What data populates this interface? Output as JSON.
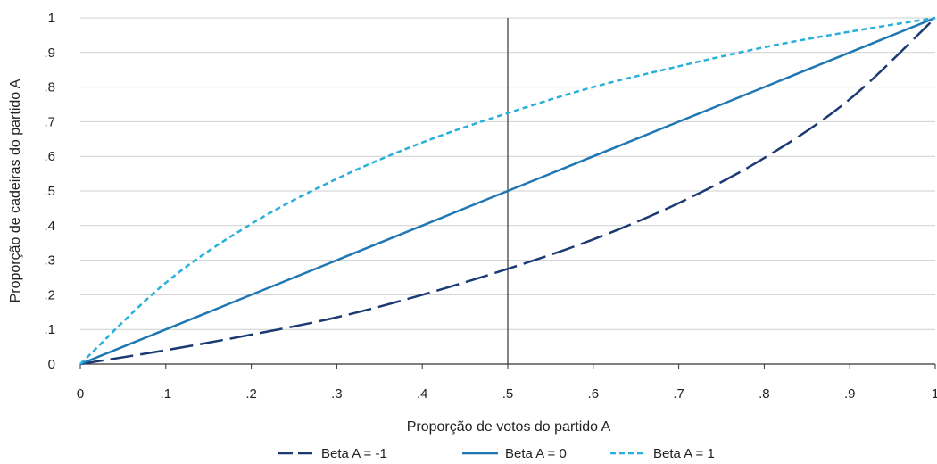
{
  "chart_data": {
    "type": "line",
    "xlabel": "Proporção de votos do partido A",
    "ylabel": "Proporção de cadeiras do partido A",
    "xlim": [
      0,
      1
    ],
    "ylim": [
      0,
      1
    ],
    "x_ticks": [
      0,
      0.1,
      0.2,
      0.3,
      0.4,
      0.5,
      0.6,
      0.7,
      0.8,
      0.9,
      1
    ],
    "x_tick_labels": [
      "0",
      ".1",
      ".2",
      ".3",
      ".4",
      ".5",
      ".6",
      ".7",
      ".8",
      ".9",
      "1"
    ],
    "y_ticks": [
      0,
      0.1,
      0.2,
      0.3,
      0.4,
      0.5,
      0.6,
      0.7,
      0.8,
      0.9,
      1
    ],
    "y_tick_labels": [
      "0",
      ".1",
      ".2",
      ".3",
      ".4",
      ".5",
      ".6",
      ".7",
      ".8",
      ".9",
      "1"
    ],
    "grid": "horizontal",
    "reference_line_x": 0.5,
    "legend_position": "bottom",
    "x": [
      0,
      0.1,
      0.2,
      0.3,
      0.4,
      0.5,
      0.6,
      0.7,
      0.8,
      0.9,
      1
    ],
    "series": [
      {
        "name": "Beta  A = -1",
        "style": "long-dash",
        "color": "#1b3a73",
        "values": [
          0,
          0.04,
          0.085,
          0.135,
          0.2,
          0.275,
          0.36,
          0.465,
          0.595,
          0.765,
          1
        ]
      },
      {
        "name": "Beta  A = 0",
        "style": "solid",
        "color": "#1f77b4",
        "values": [
          0,
          0.1,
          0.2,
          0.3,
          0.4,
          0.5,
          0.6,
          0.7,
          0.8,
          0.9,
          1
        ]
      },
      {
        "name": "Beta  A = 1",
        "style": "short-dash",
        "color": "#29afd9",
        "values": [
          0,
          0.235,
          0.405,
          0.535,
          0.64,
          0.725,
          0.8,
          0.86,
          0.915,
          0.96,
          1
        ]
      }
    ]
  }
}
